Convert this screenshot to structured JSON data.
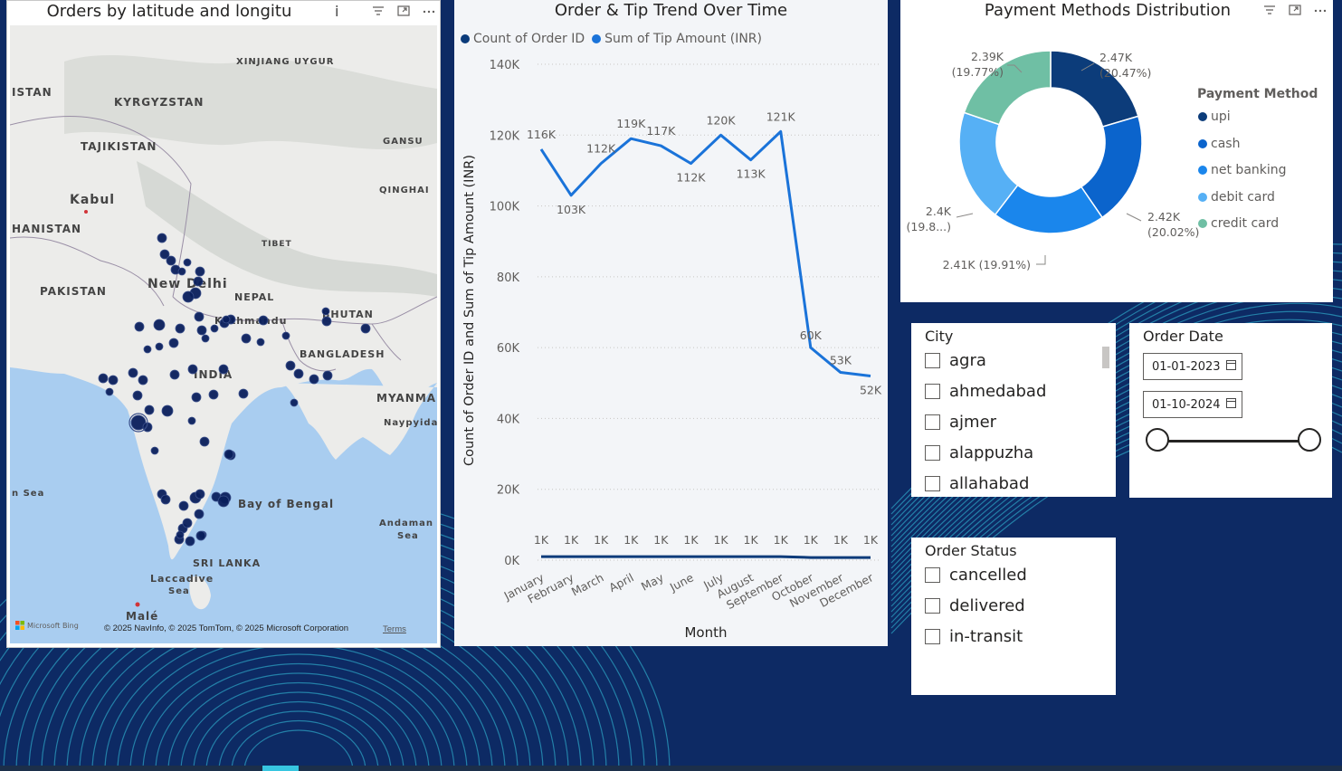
{
  "map": {
    "title": "Orders by latitude and longitu",
    "labels": [
      "XINJIANG UYGUR",
      "ISTAN",
      "KYRGYZSTAN",
      "TAJIKISTAN",
      "GANSU",
      "Kabul",
      "QINGHAI",
      "HANISTAN",
      "TIBET",
      "PAKISTAN",
      "New Delhi",
      "NEPAL",
      "Kathmandu",
      "BHUTAN",
      "BANGLADESH",
      "INDIA",
      "MYANMA",
      "Naypyidaw",
      "n Sea",
      "Bay of Bengal",
      "Andaman",
      "Sea",
      "SRI LANKA",
      "Laccadive",
      "Sea",
      "Malé"
    ],
    "bing_label": "Microsoft Bing",
    "attribution": "© 2025 NavInfo, © 2025 TomTom, © 2025 Microsoft Corporation",
    "terms": "Terms"
  },
  "trend": {
    "title": "Order & Tip Trend Over Time",
    "legend": [
      {
        "label": "Count of Order ID",
        "color": "#0b3b7a"
      },
      {
        "label": "Sum of Tip Amount (INR)",
        "color": "#1a73d9"
      }
    ],
    "xlabel": "Month",
    "ylabel": "Count of Order ID and Sum of Tip Amount (INR)"
  },
  "chart_data": [
    {
      "type": "line",
      "title": "Order & Tip Trend Over Time",
      "x": [
        "January",
        "February",
        "March",
        "April",
        "May",
        "June",
        "July",
        "August",
        "September",
        "October",
        "November",
        "December"
      ],
      "y_ticks": [
        "0K",
        "20K",
        "40K",
        "60K",
        "80K",
        "100K",
        "120K",
        "140K"
      ],
      "ylim": [
        0,
        140000
      ],
      "grid": true,
      "legend_position": "top-left",
      "series": [
        {
          "name": "Count of Order ID",
          "color": "#0b3b7a",
          "values": [
            1000,
            1000,
            1000,
            1000,
            1000,
            1000,
            1000,
            1000,
            1000,
            1000,
            1000,
            1000
          ],
          "labels": [
            "1K",
            "1K",
            "1K",
            "1K",
            "1K",
            "1K",
            "1K",
            "1K",
            "1K",
            "1K",
            "1K",
            "1K"
          ]
        },
        {
          "name": "Sum of Tip Amount (INR)",
          "color": "#1a73d9",
          "values": [
            116000,
            103000,
            112000,
            119000,
            117000,
            112000,
            120000,
            113000,
            121000,
            60000,
            53000,
            52000
          ],
          "labels": [
            "116K",
            "103K",
            "112K",
            "119K",
            "117K",
            "112K",
            "120K",
            "113K",
            "121K",
            "60K",
            "53K",
            "52K"
          ]
        }
      ]
    },
    {
      "type": "pie",
      "title": "Payment Methods Distribution",
      "legend_title": "Payment Method",
      "legend_position": "right",
      "slices": [
        {
          "name": "upi",
          "value": 2470,
          "percent": 20.47,
          "label": "2.47K",
          "pct_label": "(20.47%)",
          "color": "#0c3c7a"
        },
        {
          "name": "cash",
          "value": 2420,
          "percent": 20.02,
          "label": "2.42K",
          "pct_label": "(20.02%)",
          "color": "#0b64cc"
        },
        {
          "name": "net banking",
          "value": 2410,
          "percent": 19.91,
          "label": "2.41K (19.91%)",
          "pct_label": "",
          "color": "#1a86ec"
        },
        {
          "name": "debit card",
          "value": 2400,
          "percent": 19.83,
          "label": "2.4K",
          "pct_label": "(19.8...)",
          "color": "#56b0f5"
        },
        {
          "name": "credit card",
          "value": 2390,
          "percent": 19.77,
          "label": "2.39K",
          "pct_label": "(19.77%)",
          "color": "#6fbfa4"
        }
      ]
    }
  ],
  "payment": {
    "title": "Payment Methods Distribution",
    "legend_title": "Payment Method"
  },
  "city_slicer": {
    "title": "City",
    "items": [
      "agra",
      "ahmedabad",
      "ajmer",
      "alappuzha",
      "allahabad"
    ]
  },
  "date_slicer": {
    "title": "Order Date",
    "start": "01-01-2023",
    "end": "01-10-2024"
  },
  "status_slicer": {
    "title": "Order Status",
    "items": [
      "cancelled",
      "delivered",
      "in-transit"
    ]
  },
  "colors": {
    "canvas": "#0d2a64",
    "wave": "#37c6e0",
    "dot": "#0a1f5c"
  }
}
